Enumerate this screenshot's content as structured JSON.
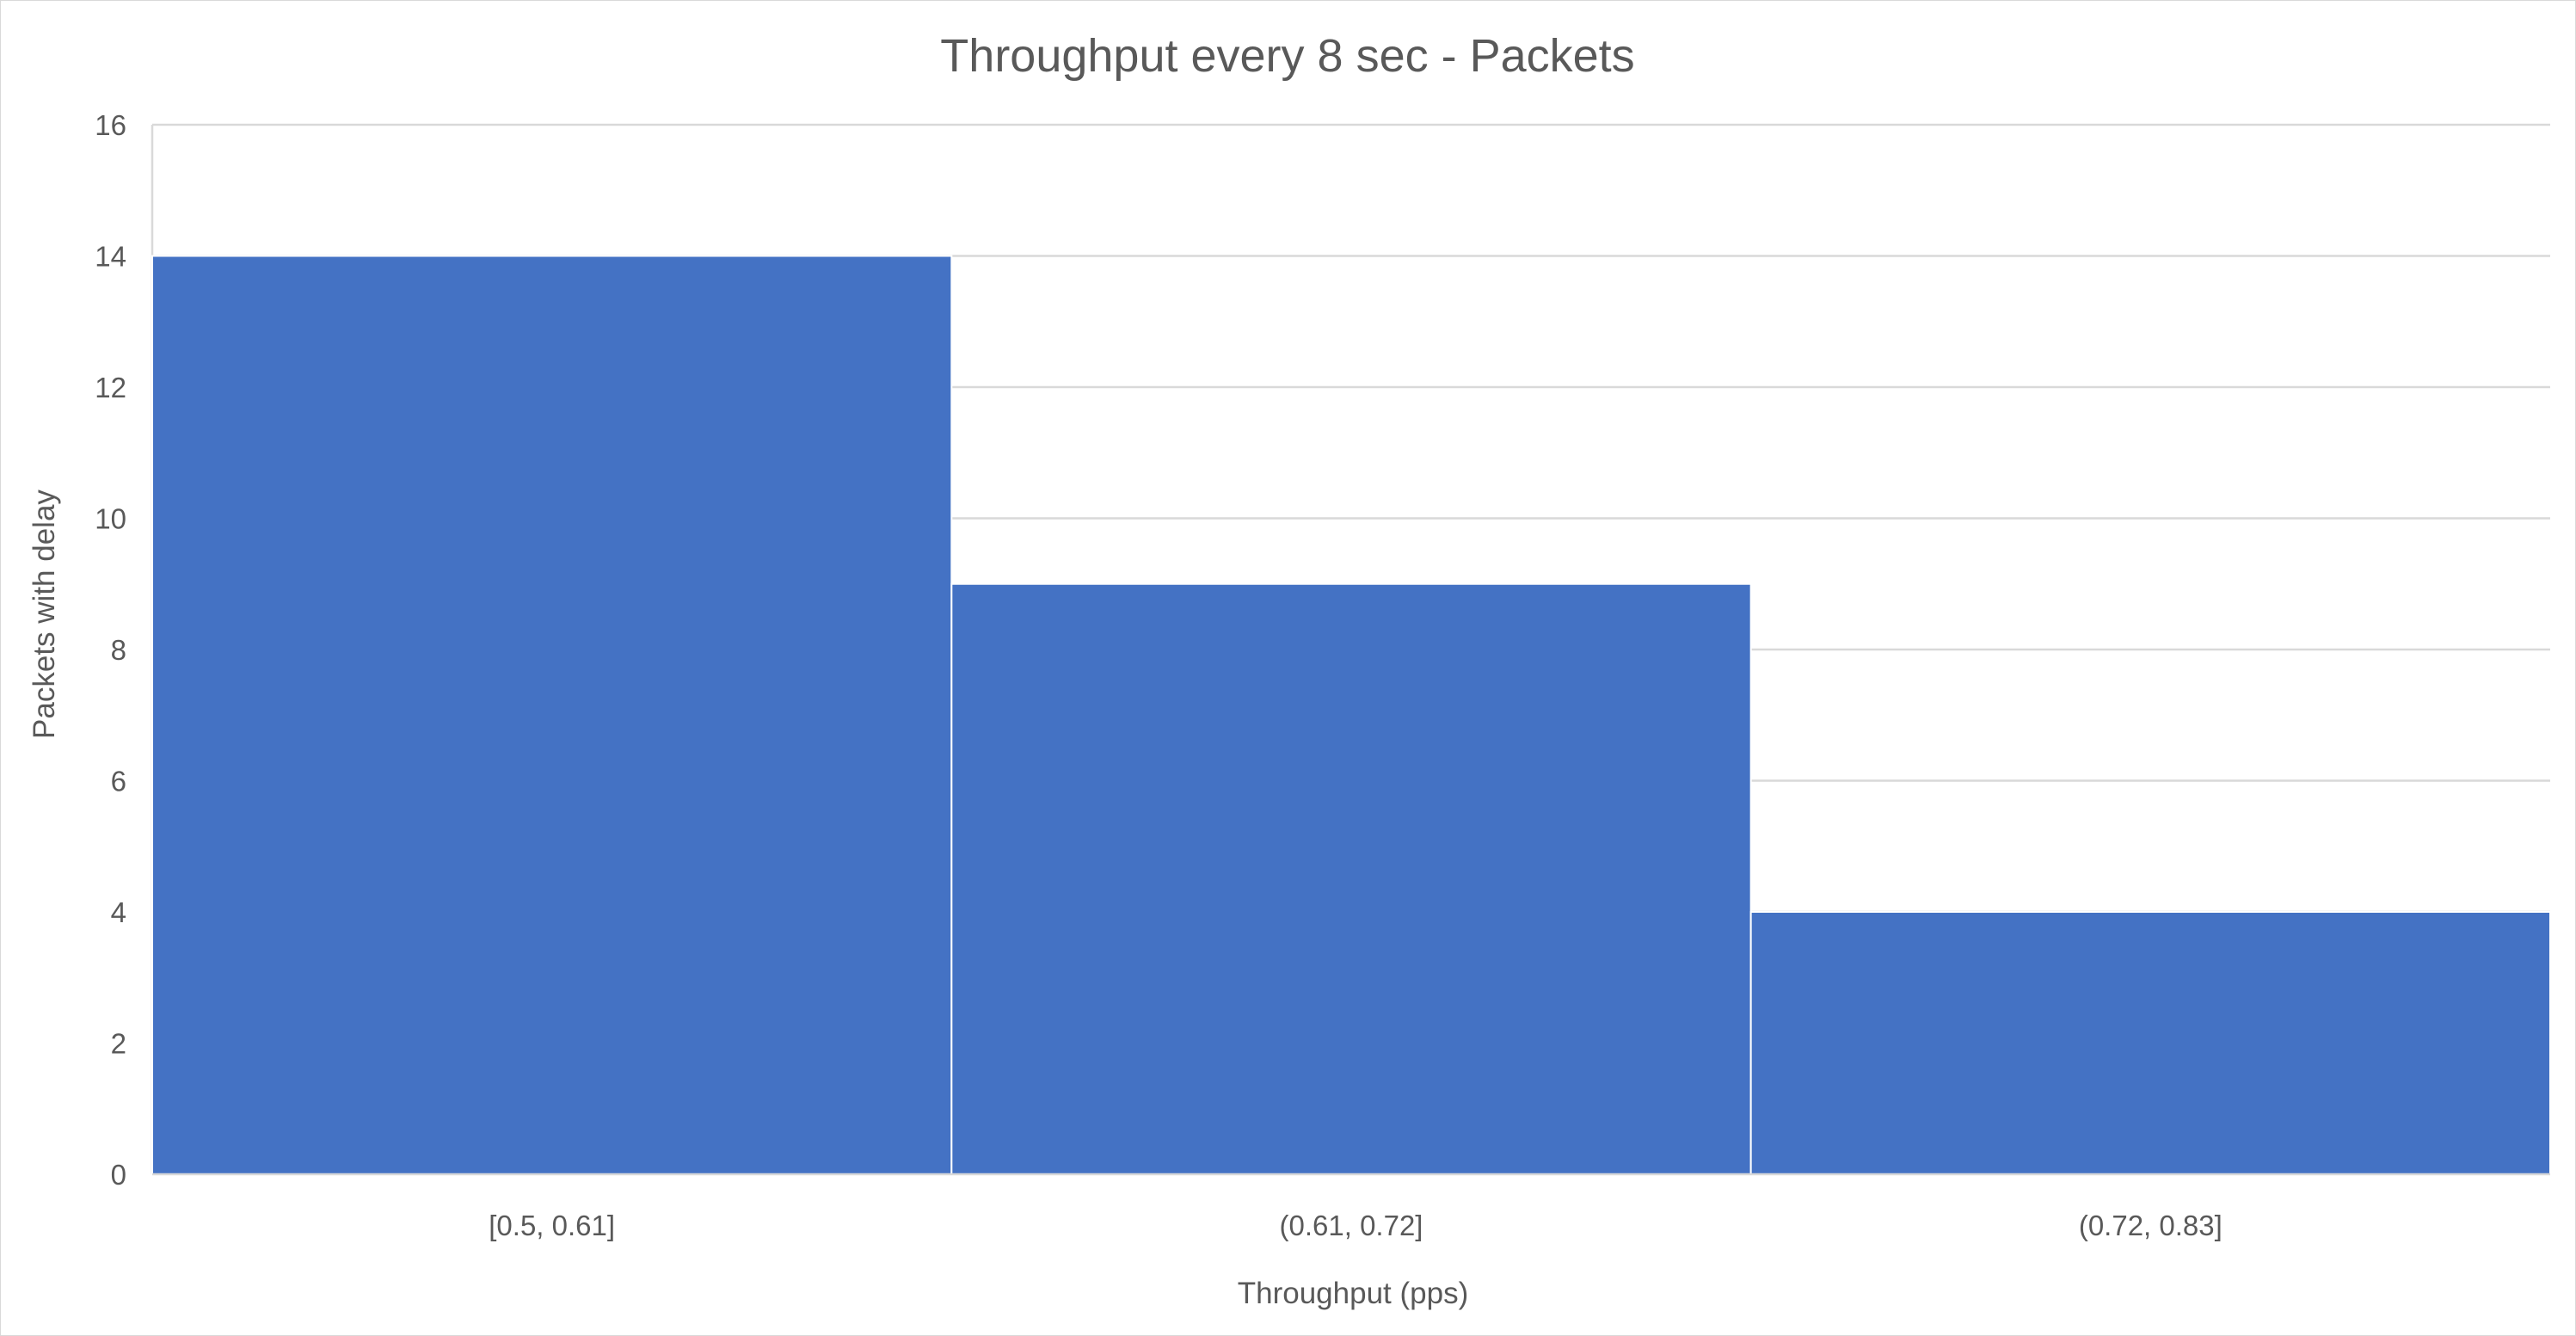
{
  "chart_data": {
    "type": "bar",
    "title": "Throughput every 8 sec - Packets",
    "xlabel": "Throughput (pps)",
    "ylabel": "Packets with delay",
    "categories": [
      "[0.5, 0.61]",
      "(0.61, 0.72]",
      "(0.72, 0.83]"
    ],
    "values": [
      14,
      9,
      4
    ],
    "ylim": [
      0,
      16
    ],
    "yticks": [
      0,
      2,
      4,
      6,
      8,
      10,
      12,
      14,
      16
    ],
    "grid": true,
    "legend": "none",
    "bar_color": "#4472C4"
  }
}
